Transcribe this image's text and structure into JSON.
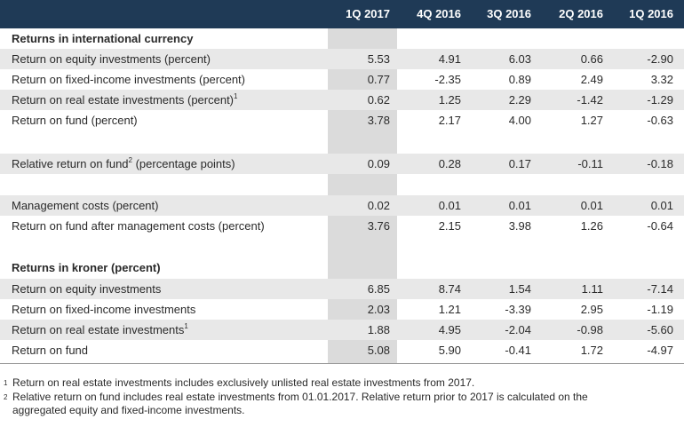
{
  "header": {
    "columns": [
      "1Q 2017",
      "4Q 2016",
      "3Q 2016",
      "2Q 2016",
      "1Q 2016"
    ]
  },
  "sections": {
    "international_title": "Returns in international currency",
    "kroner_title": "Returns in kroner (percent)"
  },
  "rows": {
    "r1": {
      "label": "Return on equity investments (percent)",
      "sup": "",
      "values": [
        "5.53",
        "4.91",
        "6.03",
        "0.66",
        "-2.90"
      ]
    },
    "r2": {
      "label": "Return on fixed-income investments (percent)",
      "sup": "",
      "values": [
        "0.77",
        "-2.35",
        "0.89",
        "2.49",
        "3.32"
      ]
    },
    "r3": {
      "label": "Return on real estate investments (percent)",
      "sup": "1",
      "values": [
        "0.62",
        "1.25",
        "2.29",
        "-1.42",
        "-1.29"
      ]
    },
    "r4": {
      "label": "Return on fund (percent)",
      "sup": "",
      "values": [
        "3.78",
        "2.17",
        "4.00",
        "1.27",
        "-0.63"
      ]
    },
    "r5": {
      "label": "Relative return on fund",
      "sup": "2",
      "label_suffix": " (percentage points)",
      "values": [
        "0.09",
        "0.28",
        "0.17",
        "-0.11",
        "-0.18"
      ]
    },
    "r6": {
      "label": "Management costs (percent)",
      "sup": "",
      "values": [
        "0.02",
        "0.01",
        "0.01",
        "0.01",
        "0.01"
      ]
    },
    "r7": {
      "label": "Return on fund after management costs (percent)",
      "sup": "",
      "values": [
        "3.76",
        "2.15",
        "3.98",
        "1.26",
        "-0.64"
      ]
    },
    "r8": {
      "label": "Return on equity investments",
      "sup": "",
      "values": [
        "6.85",
        "8.74",
        "1.54",
        "1.11",
        "-7.14"
      ]
    },
    "r9": {
      "label": "Return on fixed-income investments",
      "sup": "",
      "values": [
        "2.03",
        "1.21",
        "-3.39",
        "2.95",
        "-1.19"
      ]
    },
    "r10": {
      "label": "Return on real estate investments",
      "sup": "1",
      "values": [
        "1.88",
        "4.95",
        "-2.04",
        "-0.98",
        "-5.60"
      ]
    },
    "r11": {
      "label": "Return on fund",
      "sup": "",
      "values": [
        "5.08",
        "5.90",
        "-0.41",
        "1.72",
        "-4.97"
      ]
    }
  },
  "footnotes": {
    "f1_mark": "1",
    "f1_text": "Return on real estate investments includes exclusively unlisted real estate investments from 2017.",
    "f2_mark": "2",
    "f2_text_line1": "Relative return on fund includes real estate investments from 01.01.2017. Relative return prior to 2017 is calculated on the",
    "f2_text_line2": "aggregated equity and fixed-income investments."
  },
  "colors": {
    "header_bg": "#1f3a56",
    "row_shade": "#e8e8e8",
    "highlight_col": "#dbdbdb"
  }
}
